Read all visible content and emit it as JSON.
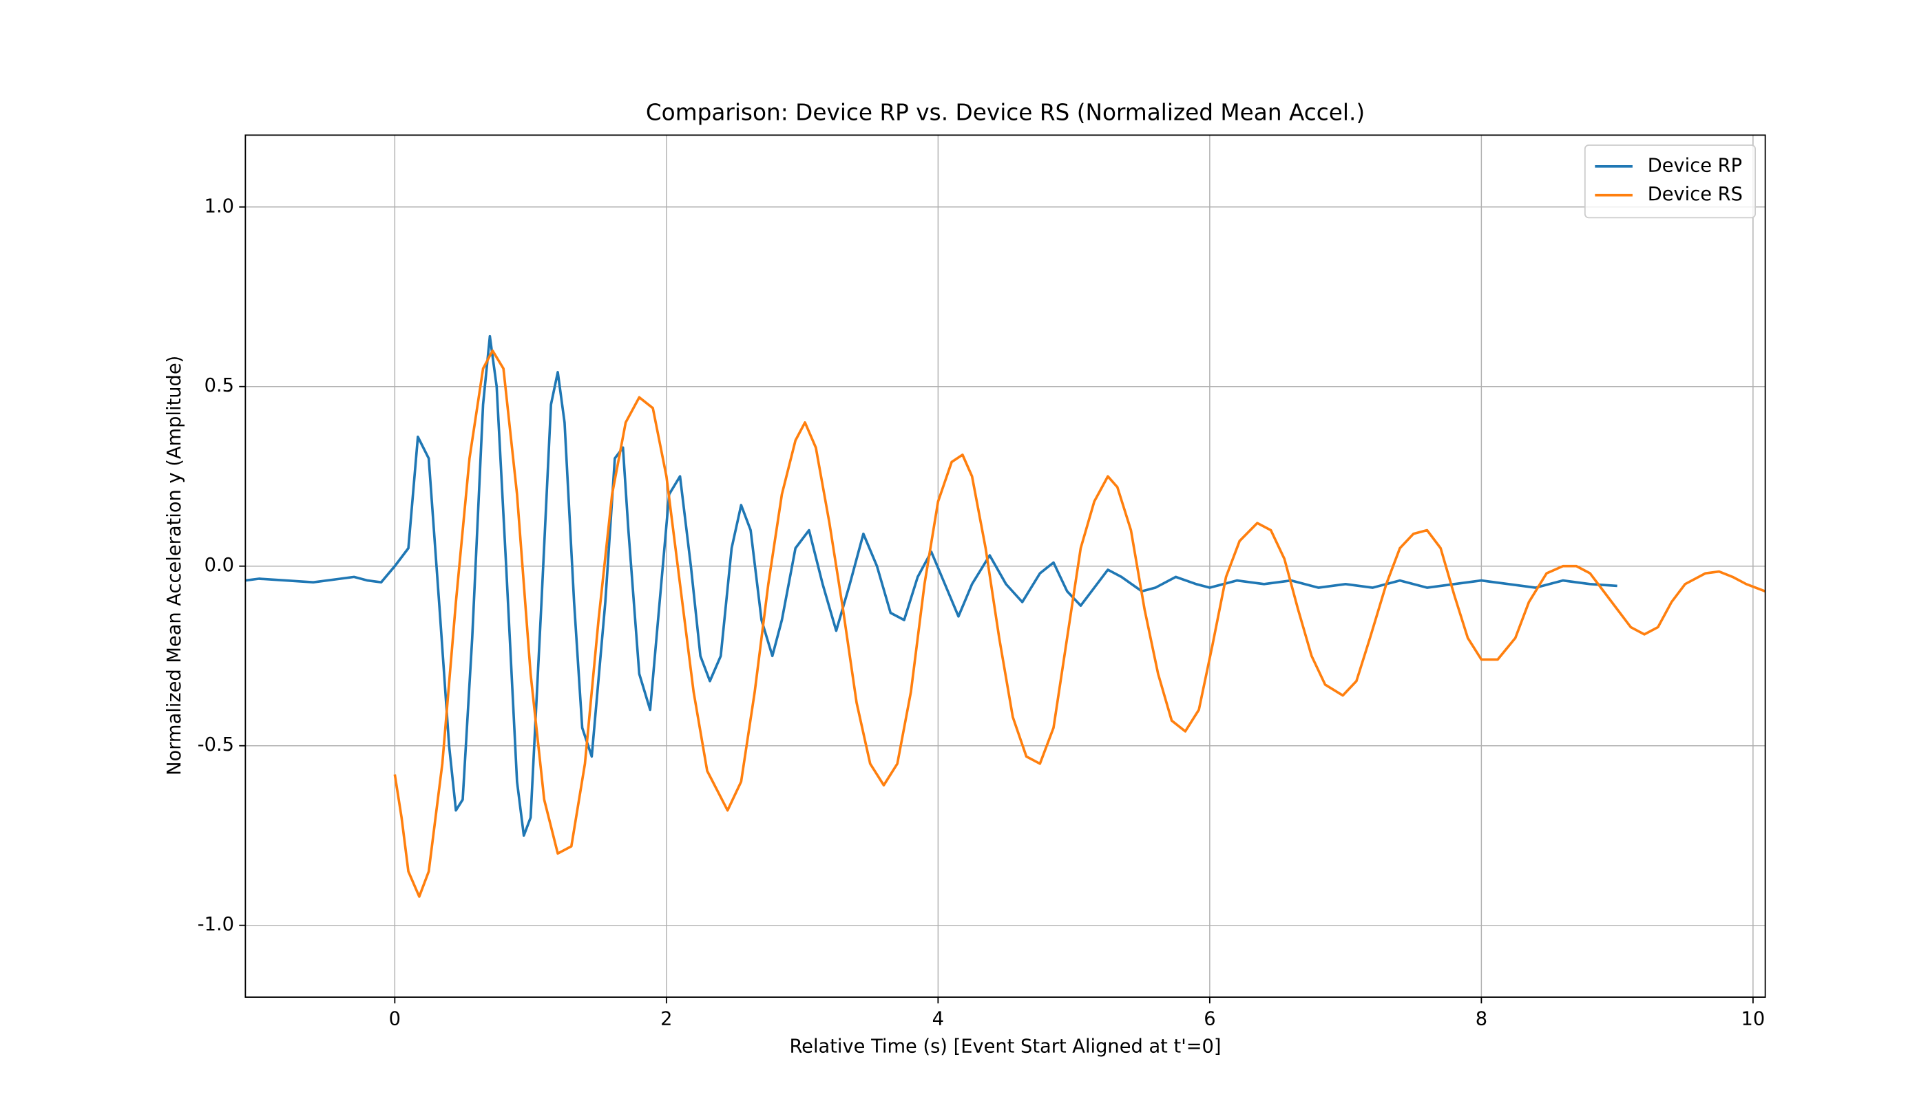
{
  "chart_data": {
    "type": "line",
    "title": "Comparison: Device RP vs. Device RS (Normalized Mean Accel.)",
    "xlabel": "Relative Time (s) [Event Start Aligned at t'=0]",
    "ylabel": "Normalized Mean Acceleration y (Amplitude)",
    "xlim": [
      -1.1,
      10.09
    ],
    "ylim": [
      -1.2,
      1.2
    ],
    "xticks": [
      0,
      2,
      4,
      6,
      8,
      10
    ],
    "yticks": [
      {
        "value": -1.0,
        "label": "-1.0"
      },
      -0.5,
      {
        "value": 0.0,
        "label": "0.0"
      },
      0.5,
      {
        "value": 1.0,
        "label": "1.0"
      }
    ],
    "grid": true,
    "legend": "upper right",
    "series": [
      {
        "name": "Device RP",
        "color": "#1f77b4",
        "x": [
          -1.1,
          -1.0,
          -0.8,
          -0.6,
          -0.4,
          -0.3,
          -0.2,
          -0.1,
          0,
          0.1,
          0.17,
          0.25,
          0.33,
          0.4,
          0.45,
          0.5,
          0.57,
          0.65,
          0.7,
          0.75,
          0.82,
          0.9,
          0.95,
          1.0,
          1.08,
          1.15,
          1.2,
          1.25,
          1.32,
          1.38,
          1.45,
          1.55,
          1.62,
          1.68,
          1.72,
          1.8,
          1.88,
          1.95,
          2.02,
          2.1,
          2.18,
          2.25,
          2.32,
          2.4,
          2.48,
          2.55,
          2.62,
          2.7,
          2.78,
          2.85,
          2.95,
          3.05,
          3.15,
          3.25,
          3.35,
          3.45,
          3.55,
          3.65,
          3.75,
          3.85,
          3.95,
          4.05,
          4.15,
          4.25,
          4.38,
          4.5,
          4.62,
          4.75,
          4.85,
          4.95,
          5.05,
          5.15,
          5.25,
          5.35,
          5.5,
          5.6,
          5.75,
          5.9,
          6.0,
          6.2,
          6.4,
          6.6,
          6.8,
          7.0,
          7.2,
          7.4,
          7.6,
          7.8,
          8.0,
          8.2,
          8.4,
          8.6,
          8.8,
          9.0
        ],
        "values": [
          -0.04,
          -0.035,
          -0.04,
          -0.045,
          -0.035,
          -0.03,
          -0.04,
          -0.045,
          0.0,
          0.05,
          0.36,
          0.3,
          -0.12,
          -0.5,
          -0.68,
          -0.65,
          -0.2,
          0.45,
          0.64,
          0.5,
          0.0,
          -0.6,
          -0.75,
          -0.7,
          -0.1,
          0.45,
          0.54,
          0.4,
          -0.1,
          -0.45,
          -0.53,
          -0.1,
          0.3,
          0.33,
          0.1,
          -0.3,
          -0.4,
          -0.1,
          0.2,
          0.25,
          0.0,
          -0.25,
          -0.32,
          -0.25,
          0.05,
          0.17,
          0.1,
          -0.15,
          -0.25,
          -0.15,
          0.05,
          0.1,
          -0.05,
          -0.18,
          -0.05,
          0.09,
          0.0,
          -0.13,
          -0.15,
          -0.03,
          0.04,
          -0.05,
          -0.14,
          -0.05,
          0.03,
          -0.05,
          -0.1,
          -0.02,
          0.01,
          -0.07,
          -0.11,
          -0.06,
          -0.01,
          -0.03,
          -0.07,
          -0.06,
          -0.03,
          -0.05,
          -0.06,
          -0.04,
          -0.05,
          -0.04,
          -0.06,
          -0.05,
          -0.06,
          -0.04,
          -0.06,
          -0.05,
          -0.04,
          -0.05,
          -0.06,
          -0.04,
          -0.05,
          -0.055
        ]
      },
      {
        "name": "Device RS",
        "color": "#ff7f0e",
        "x": [
          0,
          0.05,
          0.1,
          0.18,
          0.25,
          0.35,
          0.45,
          0.55,
          0.65,
          0.72,
          0.8,
          0.9,
          1.0,
          1.1,
          1.2,
          1.3,
          1.4,
          1.5,
          1.6,
          1.7,
          1.8,
          1.9,
          2.0,
          2.1,
          2.2,
          2.3,
          2.45,
          2.55,
          2.65,
          2.75,
          2.85,
          2.95,
          3.02,
          3.1,
          3.2,
          3.3,
          3.4,
          3.5,
          3.6,
          3.7,
          3.8,
          3.9,
          4.0,
          4.1,
          4.18,
          4.25,
          4.35,
          4.45,
          4.55,
          4.65,
          4.75,
          4.85,
          4.95,
          5.05,
          5.15,
          5.25,
          5.32,
          5.42,
          5.52,
          5.62,
          5.72,
          5.82,
          5.92,
          6.02,
          6.12,
          6.22,
          6.35,
          6.45,
          6.55,
          6.65,
          6.75,
          6.85,
          6.98,
          7.08,
          7.18,
          7.3,
          7.4,
          7.5,
          7.6,
          7.7,
          7.8,
          7.9,
          8.0,
          8.12,
          8.25,
          8.35,
          8.48,
          8.6,
          8.7,
          8.8,
          8.9,
          9.0,
          9.1,
          9.2,
          9.3,
          9.4,
          9.5,
          9.65,
          9.75,
          9.85,
          9.95,
          10.09
        ],
        "values": [
          -0.58,
          -0.7,
          -0.85,
          -0.92,
          -0.85,
          -0.55,
          -0.1,
          0.3,
          0.55,
          0.6,
          0.55,
          0.2,
          -0.3,
          -0.65,
          -0.8,
          -0.78,
          -0.55,
          -0.15,
          0.2,
          0.4,
          0.47,
          0.44,
          0.25,
          -0.05,
          -0.35,
          -0.57,
          -0.68,
          -0.6,
          -0.35,
          -0.05,
          0.2,
          0.35,
          0.4,
          0.33,
          0.12,
          -0.12,
          -0.38,
          -0.55,
          -0.61,
          -0.55,
          -0.35,
          -0.05,
          0.18,
          0.29,
          0.31,
          0.25,
          0.05,
          -0.2,
          -0.42,
          -0.53,
          -0.55,
          -0.45,
          -0.2,
          0.05,
          0.18,
          0.25,
          0.22,
          0.1,
          -0.12,
          -0.3,
          -0.43,
          -0.46,
          -0.4,
          -0.22,
          -0.03,
          0.07,
          0.12,
          0.1,
          0.02,
          -0.12,
          -0.25,
          -0.33,
          -0.36,
          -0.32,
          -0.2,
          -0.05,
          0.05,
          0.09,
          0.1,
          0.05,
          -0.08,
          -0.2,
          -0.26,
          -0.26,
          -0.2,
          -0.1,
          -0.02,
          0.0,
          0.0,
          -0.02,
          -0.07,
          -0.12,
          -0.17,
          -0.19,
          -0.17,
          -0.1,
          -0.05,
          -0.02,
          -0.015,
          -0.03,
          -0.05,
          -0.07
        ]
      }
    ]
  }
}
